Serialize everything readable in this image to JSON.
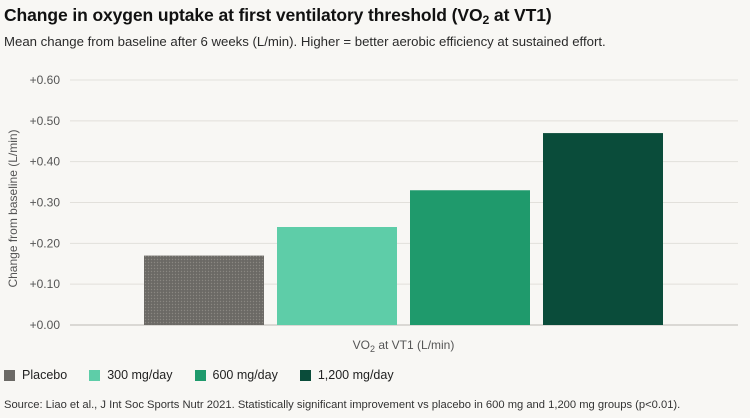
{
  "title": {
    "prefix": "Change in oxygen uptake at first ventilatory threshold (VO",
    "sub": "2",
    "suffix": " at VT1)"
  },
  "subtitle": "Mean change from baseline after 6 weeks (L/min). Higher = better aerobic efficiency at sustained effort.",
  "source": "Source: Liao et al., J Int Soc Sports Nutr 2021. Statistically significant improvement vs placebo in 600 mg and 1,200 mg groups (p<0.01).",
  "chart_data": {
    "type": "bar",
    "title": "Change in oxygen uptake at first ventilatory threshold (VO2 at VT1)",
    "subtitle": "Mean change from baseline after 6 weeks (L/min). Higher = better aerobic efficiency at sustained effort.",
    "xlabel": {
      "prefix": "VO",
      "sub": "2",
      "suffix": " at VT1 (L/min)"
    },
    "ylabel": "Change from baseline (L/min)",
    "ylim": [
      0,
      0.6
    ],
    "yticks": [
      0,
      0.1,
      0.2,
      0.3,
      0.4,
      0.5,
      0.6
    ],
    "ytick_labels": [
      "+0.00",
      "+0.10",
      "+0.20",
      "+0.30",
      "+0.40",
      "+0.50",
      "+0.60"
    ],
    "grid": true,
    "legend_position": "bottom-left",
    "series": [
      {
        "name": "Placebo",
        "value": 0.17,
        "color": "#6b6965",
        "pattern": "dotted"
      },
      {
        "name": "300 mg/day",
        "value": 0.24,
        "color": "#5ecda8"
      },
      {
        "name": "600 mg/day",
        "value": 0.33,
        "color": "#1f9a6c"
      },
      {
        "name": "1,200 mg/day",
        "value": 0.47,
        "color": "#0a4c3a"
      }
    ]
  }
}
